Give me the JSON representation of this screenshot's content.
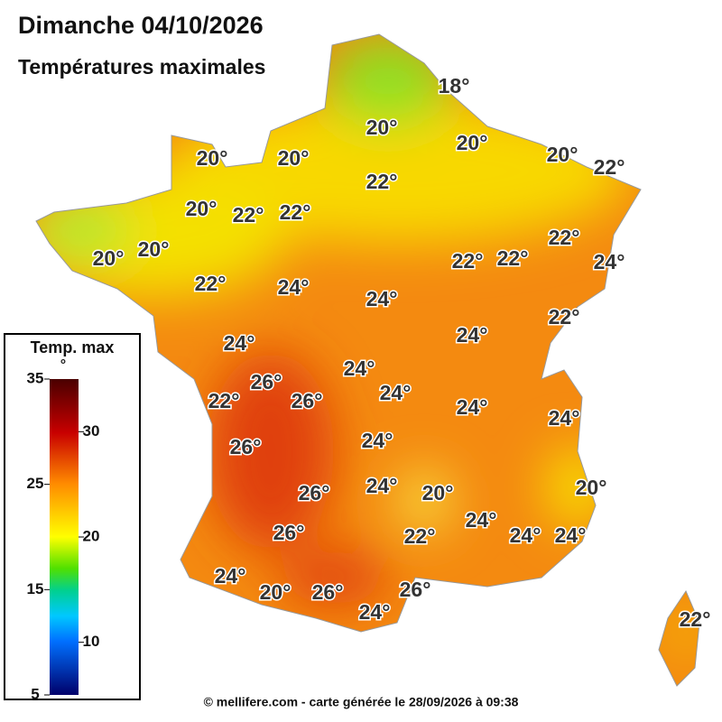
{
  "header": {
    "title": "Dimanche 04/10/2026",
    "subtitle": "Températures maximales"
  },
  "legend": {
    "title": "Temp. max",
    "unit": "°",
    "range": [
      5,
      35
    ],
    "ticks": [
      35,
      30,
      25,
      20,
      15,
      10,
      5
    ]
  },
  "map": {
    "labels": [
      "18°",
      "20°",
      "20°",
      "20°",
      "22°",
      "20°",
      "20°",
      "22°",
      "20°",
      "22°",
      "22°",
      "20°",
      "20°",
      "22°",
      "22°",
      "22°",
      "24°",
      "22°",
      "24°",
      "24°",
      "22°",
      "24°",
      "24°",
      "24°",
      "26°",
      "24°",
      "22°",
      "26°",
      "24°",
      "24°",
      "26°",
      "24°",
      "24°",
      "20°",
      "26°",
      "20°",
      "24°",
      "26°",
      "22°",
      "24°",
      "24°",
      "24°",
      "26°",
      "20°",
      "26°",
      "24°",
      "22°"
    ]
  },
  "footer": "© mellifere.com - carte générée le 28/09/2026 à 09:38"
}
